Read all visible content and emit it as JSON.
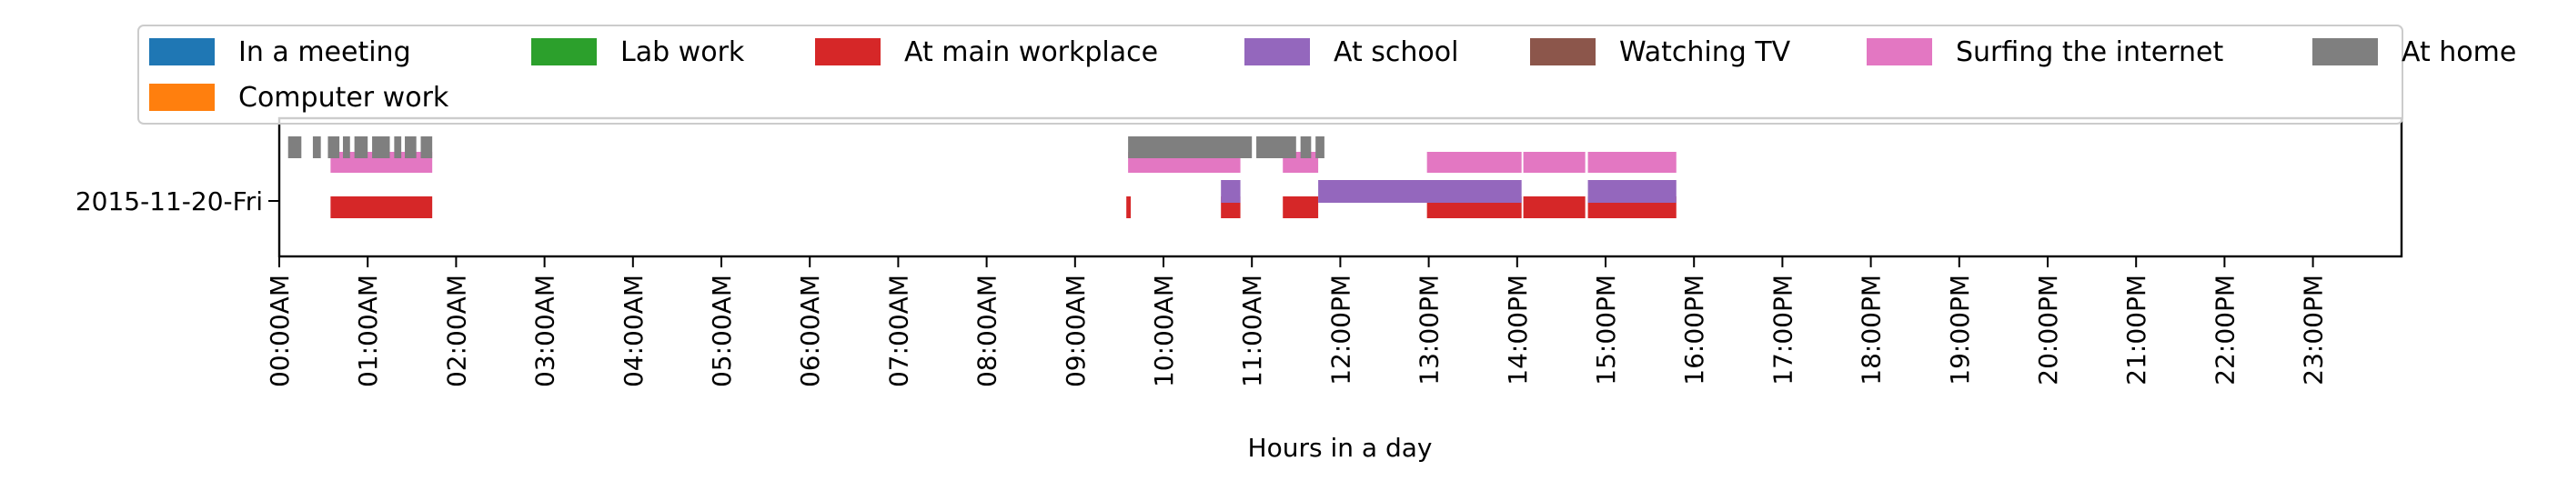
{
  "chart_data": {
    "type": "timeline",
    "xlabel": "Hours in a day",
    "ylabel": "",
    "xlim": [
      0,
      24
    ],
    "x_ticks": [
      "00:00AM",
      "01:00AM",
      "02:00AM",
      "03:00AM",
      "04:00AM",
      "05:00AM",
      "06:00AM",
      "07:00AM",
      "08:00AM",
      "09:00AM",
      "10:00AM",
      "11:00AM",
      "12:00PM",
      "13:00PM",
      "14:00PM",
      "15:00PM",
      "16:00PM",
      "17:00PM",
      "18:00PM",
      "19:00PM",
      "20:00PM",
      "21:00PM",
      "22:00PM",
      "23:00PM"
    ],
    "rows": [
      "2015-11-20-Fri"
    ],
    "legend_position": "top",
    "legend": [
      {
        "name": "In a meeting",
        "color": "#1f77b4"
      },
      {
        "name": "Lab work",
        "color": "#2ca02c"
      },
      {
        "name": "At main workplace",
        "color": "#d62728"
      },
      {
        "name": "At school",
        "color": "#9467bd"
      },
      {
        "name": "Watching TV",
        "color": "#8c564b"
      },
      {
        "name": "Surfing the internet",
        "color": "#e377c2"
      },
      {
        "name": "At home",
        "color": "#7f7f7f"
      },
      {
        "name": "Computer work",
        "color": "#ff7f0e"
      }
    ],
    "series": [
      {
        "name": "At main workplace",
        "color": "#d62728",
        "segments": [
          [
            0.58,
            1.73
          ],
          [
            9.58,
            9.63
          ],
          [
            10.65,
            10.87
          ],
          [
            11.35,
            11.75
          ],
          [
            12.98,
            14.05
          ],
          [
            14.07,
            14.77
          ],
          [
            14.8,
            15.8
          ]
        ]
      },
      {
        "name": "At school",
        "color": "#9467bd",
        "segments": [
          [
            10.65,
            10.87
          ],
          [
            11.75,
            14.05
          ],
          [
            14.8,
            15.8
          ]
        ]
      },
      {
        "name": "Surfing the internet",
        "color": "#e377c2",
        "segments": [
          [
            0.58,
            1.73
          ],
          [
            9.6,
            10.87
          ],
          [
            11.35,
            11.75
          ],
          [
            12.98,
            14.05
          ],
          [
            14.07,
            14.77
          ],
          [
            14.8,
            15.8
          ]
        ]
      },
      {
        "name": "At home",
        "color": "#7f7f7f",
        "segments": [
          [
            0.1,
            0.25
          ],
          [
            0.38,
            0.47
          ],
          [
            0.55,
            0.68
          ],
          [
            0.72,
            0.8
          ],
          [
            0.85,
            1.0
          ],
          [
            1.05,
            1.25
          ],
          [
            1.3,
            1.38
          ],
          [
            1.42,
            1.55
          ],
          [
            1.6,
            1.73
          ],
          [
            9.6,
            11.0
          ],
          [
            11.05,
            11.5
          ],
          [
            11.55,
            11.67
          ],
          [
            11.72,
            11.82
          ]
        ]
      }
    ]
  }
}
